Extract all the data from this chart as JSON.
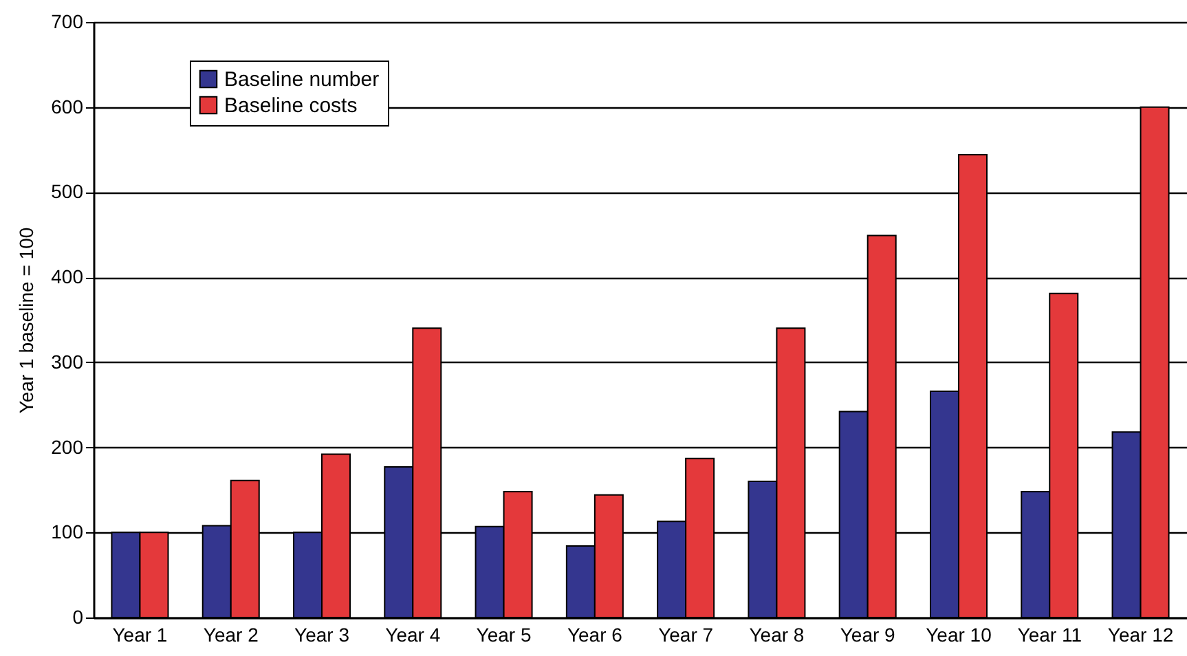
{
  "chart_data": {
    "type": "bar",
    "ylabel": "Year 1 baseline = 100",
    "categories": [
      "Year 1",
      "Year 2",
      "Year 3",
      "Year 4",
      "Year 5",
      "Year 6",
      "Year 7",
      "Year 8",
      "Year 9",
      "Year 10",
      "Year 11",
      "Year 12"
    ],
    "series": [
      {
        "name": "Baseline number",
        "color": "#34368f",
        "values": [
          100,
          108,
          100,
          177,
          107,
          84,
          113,
          160,
          242,
          266,
          148,
          218
        ]
      },
      {
        "name": "Baseline costs",
        "color": "#e4393b",
        "values": [
          100,
          161,
          192,
          340,
          148,
          144,
          187,
          340,
          449,
          544,
          381,
          600
        ]
      }
    ],
    "ylim": [
      0,
      700
    ],
    "yticks": [
      0,
      100,
      200,
      300,
      400,
      500,
      600,
      700
    ],
    "grid": "y",
    "legend": "top left"
  }
}
